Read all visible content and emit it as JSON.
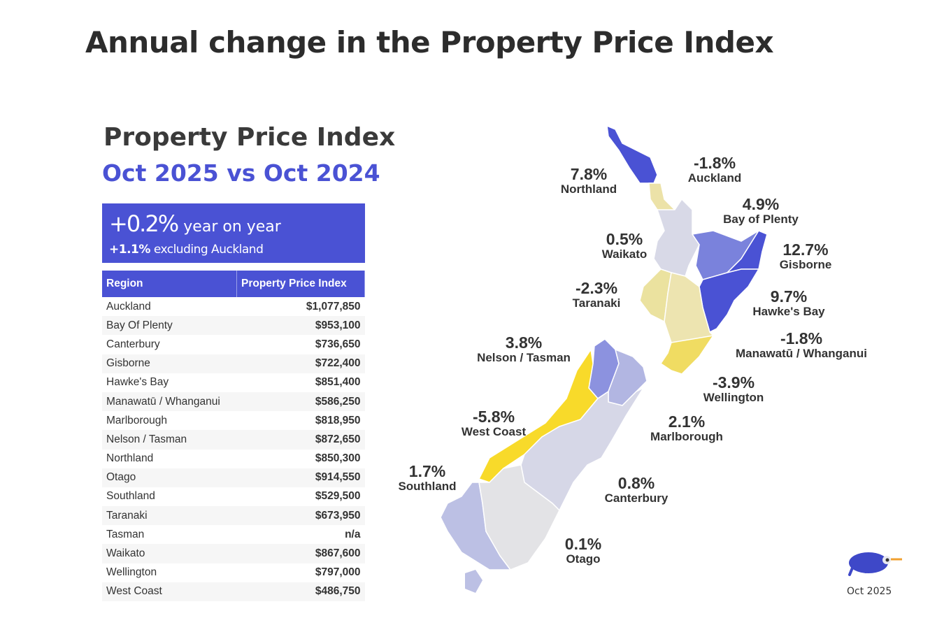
{
  "title": "Annual change in the Property Price Index",
  "panel": {
    "heading": "Property Price Index",
    "subheading": "Oct 2025 vs Oct 2024",
    "headline_value": "+0.2%",
    "headline_text": "year on year",
    "sub_value": "+1.1%",
    "sub_text": "excluding Auckland"
  },
  "table": {
    "headers": [
      "Region",
      "Property Price Index"
    ],
    "rows": [
      [
        "Auckland",
        "$1,077,850"
      ],
      [
        "Bay Of Plenty",
        "$953,100"
      ],
      [
        "Canterbury",
        "$736,650"
      ],
      [
        "Gisborne",
        "$722,400"
      ],
      [
        "Hawke's Bay",
        "$851,400"
      ],
      [
        "Manawatū / Whanganui",
        "$586,250"
      ],
      [
        "Marlborough",
        "$818,950"
      ],
      [
        "Nelson / Tasman",
        "$872,650"
      ],
      [
        "Northland",
        "$850,300"
      ],
      [
        "Otago",
        "$914,550"
      ],
      [
        "Southland",
        "$529,500"
      ],
      [
        "Taranaki",
        "$673,950"
      ],
      [
        "Tasman",
        "n/a"
      ],
      [
        "Waikato",
        "$867,600"
      ],
      [
        "Wellington",
        "$797,000"
      ],
      [
        "West Coast",
        "$486,750"
      ]
    ]
  },
  "map": {
    "regions": [
      {
        "name": "Northland",
        "change": "7.8%",
        "color": "#4a52d4"
      },
      {
        "name": "Auckland",
        "change": "-1.8%",
        "color": "#ece2a8"
      },
      {
        "name": "Bay of Plenty",
        "change": "4.9%",
        "color": "#7a82dc"
      },
      {
        "name": "Waikato",
        "change": "0.5%",
        "color": "#d8d9e7"
      },
      {
        "name": "Gisborne",
        "change": "12.7%",
        "color": "#4a52d4"
      },
      {
        "name": "Taranaki",
        "change": "-2.3%",
        "color": "#ebe29f"
      },
      {
        "name": "Hawke's Bay",
        "change": "9.7%",
        "color": "#4a52d4"
      },
      {
        "name": "Nelson / Tasman",
        "change": "3.8%",
        "color": "#8c92df"
      },
      {
        "name": "Manawatū / Whanganui",
        "change": "-1.8%",
        "color": "#ede4b0"
      },
      {
        "name": "Wellington",
        "change": "-3.9%",
        "color": "#f0dc62"
      },
      {
        "name": "West Coast",
        "change": "-5.8%",
        "color": "#f8da2a"
      },
      {
        "name": "Marlborough",
        "change": "2.1%",
        "color": "#b2b6e2"
      },
      {
        "name": "Southland",
        "change": "1.7%",
        "color": "#bcc0e4"
      },
      {
        "name": "Canterbury",
        "change": "0.8%",
        "color": "#d6d7e7"
      },
      {
        "name": "Otago",
        "change": "0.1%",
        "color": "#e3e3e6"
      }
    ]
  },
  "logo_caption": "Oct 2025"
}
